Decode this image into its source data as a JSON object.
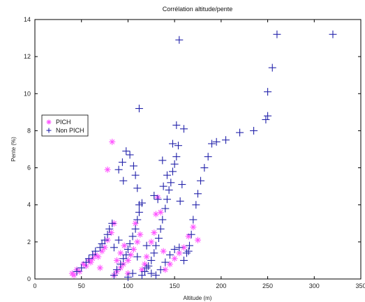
{
  "chart_data": {
    "type": "scatter",
    "title": "Corrélation altitude/pente",
    "xlabel": "Altitude (m)",
    "ylabel": "Pente (%)",
    "xlim": [
      0,
      350
    ],
    "ylim": [
      0,
      14
    ],
    "x_ticks": [
      "0",
      "50",
      "100",
      "150",
      "200",
      "250",
      "300",
      "350"
    ],
    "y_ticks": [
      "0",
      "2",
      "4",
      "6",
      "8",
      "10",
      "12",
      "14"
    ],
    "legend_position": "middle-left",
    "grid": false,
    "series": [
      {
        "name": "PICH",
        "marker": "star",
        "color": "#ff55ff",
        "points": [
          [
            40,
            0.3
          ],
          [
            42,
            0.2
          ],
          [
            45,
            0.5
          ],
          [
            48,
            0.4
          ],
          [
            52,
            0.8
          ],
          [
            55,
            0.7
          ],
          [
            58,
            1.0
          ],
          [
            60,
            0.9
          ],
          [
            62,
            1.1
          ],
          [
            65,
            1.3
          ],
          [
            68,
            1.2
          ],
          [
            72,
            1.5
          ],
          [
            75,
            1.7
          ],
          [
            78,
            2.1
          ],
          [
            82,
            2.5
          ],
          [
            85,
            3.0
          ],
          [
            78,
            5.9
          ],
          [
            83,
            7.4
          ],
          [
            85,
            0.2
          ],
          [
            88,
            0.4
          ],
          [
            92,
            0.6
          ],
          [
            95,
            0.8
          ],
          [
            100,
            1.0
          ],
          [
            103,
            1.3
          ],
          [
            106,
            1.6
          ],
          [
            110,
            2.0
          ],
          [
            113,
            2.4
          ],
          [
            118,
            0.8
          ],
          [
            120,
            1.2
          ],
          [
            125,
            2.0
          ],
          [
            128,
            2.5
          ],
          [
            130,
            3.5
          ],
          [
            132,
            4.4
          ],
          [
            135,
            3.6
          ],
          [
            138,
            1.5
          ],
          [
            140,
            0.5
          ],
          [
            145,
            0.8
          ],
          [
            150,
            1.1
          ],
          [
            155,
            1.4
          ],
          [
            160,
            1.7
          ],
          [
            165,
            2.3
          ],
          [
            170,
            2.8
          ],
          [
            175,
            2.1
          ],
          [
            100,
            0.3
          ],
          [
            115,
            0.5
          ],
          [
            88,
            1.0
          ],
          [
            92,
            1.4
          ],
          [
            96,
            1.8
          ],
          [
            108,
            3.0
          ],
          [
            70,
            0.6
          ]
        ]
      },
      {
        "name": "Non PICH",
        "marker": "plus",
        "color": "#2222aa",
        "points": [
          [
            45,
            0.4
          ],
          [
            50,
            0.6
          ],
          [
            55,
            0.9
          ],
          [
            58,
            1.1
          ],
          [
            62,
            1.3
          ],
          [
            65,
            1.5
          ],
          [
            70,
            1.7
          ],
          [
            72,
            1.9
          ],
          [
            75,
            2.1
          ],
          [
            78,
            2.4
          ],
          [
            80,
            2.7
          ],
          [
            83,
            3.0
          ],
          [
            85,
            0.2
          ],
          [
            88,
            0.5
          ],
          [
            92,
            0.8
          ],
          [
            95,
            1.1
          ],
          [
            98,
            1.3
          ],
          [
            100,
            1.6
          ],
          [
            102,
            1.9
          ],
          [
            105,
            2.3
          ],
          [
            108,
            2.7
          ],
          [
            110,
            3.2
          ],
          [
            112,
            3.6
          ],
          [
            115,
            4.1
          ],
          [
            110,
            4.9
          ],
          [
            112,
            4.0
          ],
          [
            95,
            5.3
          ],
          [
            90,
            5.9
          ],
          [
            94,
            6.3
          ],
          [
            98,
            6.9
          ],
          [
            102,
            6.7
          ],
          [
            106,
            6.1
          ],
          [
            108,
            5.6
          ],
          [
            112,
            9.2
          ],
          [
            118,
            0.4
          ],
          [
            122,
            0.7
          ],
          [
            125,
            1.0
          ],
          [
            128,
            1.4
          ],
          [
            130,
            1.8
          ],
          [
            133,
            2.2
          ],
          [
            135,
            2.7
          ],
          [
            137,
            3.2
          ],
          [
            140,
            3.8
          ],
          [
            142,
            4.3
          ],
          [
            144,
            4.8
          ],
          [
            146,
            5.2
          ],
          [
            148,
            5.8
          ],
          [
            150,
            6.2
          ],
          [
            152,
            6.6
          ],
          [
            154,
            7.2
          ],
          [
            148,
            7.3
          ],
          [
            152,
            8.3
          ],
          [
            155,
            12.9
          ],
          [
            160,
            8.1
          ],
          [
            158,
            5.1
          ],
          [
            156,
            4.2
          ],
          [
            160,
            1.0
          ],
          [
            163,
            1.4
          ],
          [
            166,
            1.8
          ],
          [
            168,
            2.4
          ],
          [
            170,
            3.2
          ],
          [
            173,
            4.0
          ],
          [
            175,
            4.6
          ],
          [
            178,
            5.3
          ],
          [
            182,
            6.0
          ],
          [
            186,
            6.6
          ],
          [
            190,
            7.3
          ],
          [
            195,
            7.4
          ],
          [
            205,
            7.5
          ],
          [
            220,
            7.9
          ],
          [
            235,
            8.0
          ],
          [
            248,
            8.6
          ],
          [
            250,
            8.8
          ],
          [
            250,
            10.1
          ],
          [
            255,
            11.4
          ],
          [
            260,
            13.2
          ],
          [
            320,
            13.2
          ],
          [
            130,
            0.2
          ],
          [
            135,
            0.5
          ],
          [
            140,
            0.9
          ],
          [
            145,
            1.3
          ],
          [
            125,
            0.3
          ],
          [
            115,
            0.2
          ],
          [
            105,
            0.3
          ],
          [
            120,
            1.8
          ],
          [
            138,
            5.0
          ],
          [
            128,
            4.5
          ],
          [
            132,
            4.3
          ],
          [
            142,
            5.6
          ],
          [
            137,
            6.4
          ],
          [
            150,
            1.6
          ],
          [
            155,
            1.7
          ],
          [
            165,
            1.5
          ],
          [
            100,
            0.1
          ],
          [
            120,
            0.6
          ],
          [
            110,
            1.2
          ],
          [
            85,
            1.7
          ],
          [
            90,
            2.1
          ]
        ]
      }
    ]
  }
}
